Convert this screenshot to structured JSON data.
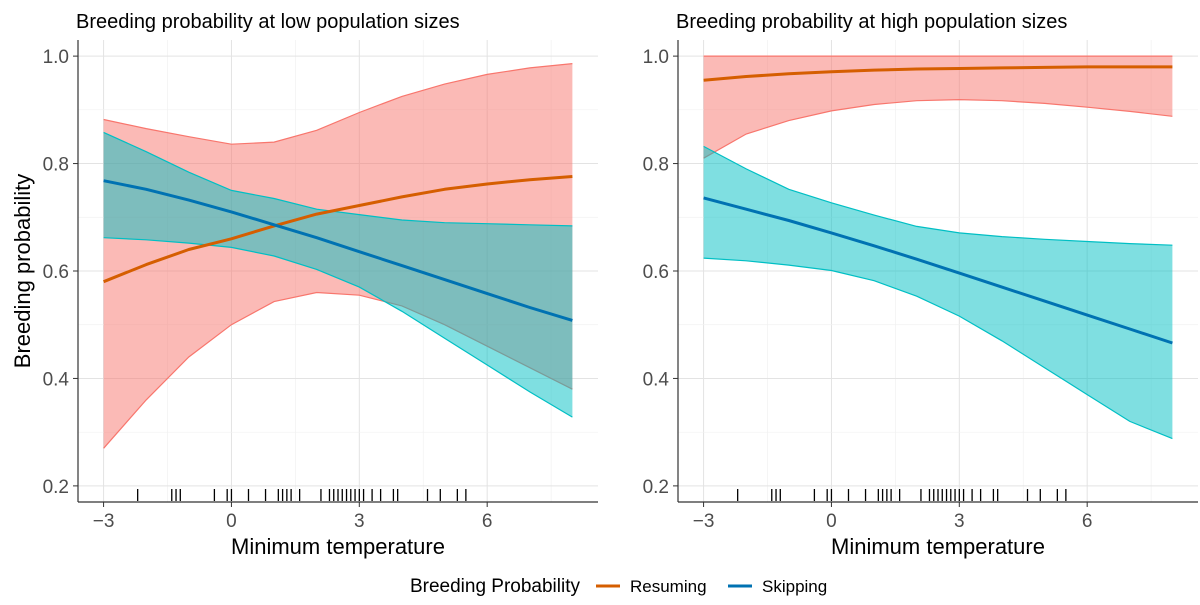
{
  "legend": {
    "title": "Breeding Probability",
    "items": [
      {
        "label": "Resuming",
        "color": "#D55E00"
      },
      {
        "label": "Skipping",
        "color": "#0072B2"
      }
    ]
  },
  "chart_data": [
    {
      "type": "line",
      "title": "Breeding probability at low population sizes",
      "xlabel": "Minimum temperature",
      "ylabel": "Breeding probability",
      "xlim": [
        -3.6,
        8.6
      ],
      "ylim": [
        0.17,
        1.03
      ],
      "xticks": [
        -3,
        0,
        3,
        6
      ],
      "yticks": [
        0.2,
        0.4,
        0.6,
        0.8,
        1.0
      ],
      "ytick_labels": [
        "0.2",
        "0.4",
        "0.6",
        "0.8",
        "1.0"
      ],
      "grid": true,
      "x": [
        -3,
        -2,
        -1,
        0,
        1,
        2,
        3,
        4,
        5,
        6,
        7,
        8
      ],
      "series": [
        {
          "name": "Resuming",
          "color": "#D55E00",
          "ribbon_color": "#F8766D",
          "values": [
            0.58,
            0.612,
            0.64,
            0.66,
            0.684,
            0.706,
            0.722,
            0.738,
            0.752,
            0.762,
            0.77,
            0.776
          ],
          "lower": [
            0.27,
            0.36,
            0.44,
            0.5,
            0.543,
            0.56,
            0.555,
            0.535,
            0.5,
            0.46,
            0.42,
            0.38
          ],
          "upper": [
            0.882,
            0.865,
            0.85,
            0.836,
            0.84,
            0.862,
            0.895,
            0.925,
            0.948,
            0.966,
            0.978,
            0.986
          ]
        },
        {
          "name": "Skipping",
          "color": "#0072B2",
          "ribbon_color": "#00BFC4",
          "values": [
            0.768,
            0.752,
            0.732,
            0.71,
            0.686,
            0.662,
            0.636,
            0.61,
            0.584,
            0.558,
            0.532,
            0.508
          ],
          "lower": [
            0.662,
            0.658,
            0.652,
            0.644,
            0.628,
            0.603,
            0.57,
            0.525,
            0.475,
            0.425,
            0.375,
            0.328
          ],
          "upper": [
            0.858,
            0.822,
            0.784,
            0.75,
            0.735,
            0.715,
            0.705,
            0.695,
            0.69,
            0.688,
            0.686,
            0.684
          ]
        }
      ],
      "rug": [
        -2.2,
        -1.4,
        -1.3,
        -1.2,
        -0.4,
        -0.1,
        0.0,
        0.4,
        0.8,
        1.1,
        1.2,
        1.3,
        1.4,
        1.6,
        2.1,
        2.3,
        2.4,
        2.5,
        2.6,
        2.7,
        2.8,
        2.9,
        3.0,
        3.1,
        3.3,
        3.5,
        3.8,
        3.9,
        4.6,
        4.9,
        5.3,
        5.5
      ]
    },
    {
      "type": "line",
      "title": "Breeding probability at high population sizes",
      "xlabel": "Minimum temperature",
      "ylabel": "",
      "xlim": [
        -3.6,
        8.6
      ],
      "ylim": [
        0.17,
        1.03
      ],
      "xticks": [
        -3,
        0,
        3,
        6
      ],
      "yticks": [
        0.2,
        0.4,
        0.6,
        0.8,
        1.0
      ],
      "ytick_labels": [
        "0.2",
        "0.4",
        "0.6",
        "0.8",
        "1.0"
      ],
      "grid": true,
      "x": [
        -3,
        -2,
        -1,
        0,
        1,
        2,
        3,
        4,
        5,
        6,
        7,
        8
      ],
      "series": [
        {
          "name": "Resuming",
          "color": "#D55E00",
          "ribbon_color": "#F8766D",
          "values": [
            0.955,
            0.962,
            0.967,
            0.971,
            0.974,
            0.976,
            0.977,
            0.978,
            0.979,
            0.98,
            0.98,
            0.98
          ],
          "lower": [
            0.81,
            0.855,
            0.88,
            0.898,
            0.91,
            0.917,
            0.919,
            0.917,
            0.912,
            0.905,
            0.897,
            0.888
          ],
          "upper": [
            1.0,
            1.0,
            1.0,
            1.0,
            1.0,
            1.0,
            1.0,
            1.0,
            1.0,
            1.0,
            1.0,
            1.0
          ]
        },
        {
          "name": "Skipping",
          "color": "#0072B2",
          "ribbon_color": "#00BFC4",
          "values": [
            0.736,
            0.715,
            0.694,
            0.671,
            0.647,
            0.622,
            0.596,
            0.57,
            0.544,
            0.518,
            0.492,
            0.466
          ],
          "lower": [
            0.624,
            0.619,
            0.611,
            0.601,
            0.582,
            0.553,
            0.516,
            0.47,
            0.42,
            0.37,
            0.32,
            0.288
          ],
          "upper": [
            0.832,
            0.79,
            0.752,
            0.727,
            0.704,
            0.683,
            0.671,
            0.664,
            0.659,
            0.655,
            0.651,
            0.648
          ]
        }
      ],
      "rug": [
        -2.2,
        -1.4,
        -1.3,
        -1.2,
        -0.4,
        -0.1,
        0.0,
        0.4,
        0.8,
        1.1,
        1.2,
        1.3,
        1.4,
        1.6,
        2.1,
        2.3,
        2.4,
        2.5,
        2.6,
        2.7,
        2.8,
        2.9,
        3.0,
        3.1,
        3.3,
        3.5,
        3.8,
        3.9,
        4.6,
        4.9,
        5.3,
        5.5
      ]
    }
  ]
}
